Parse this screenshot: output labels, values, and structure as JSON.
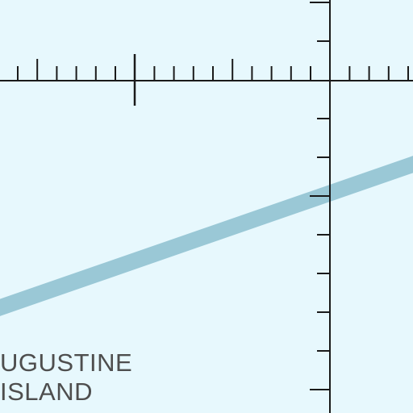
{
  "map": {
    "background_color": "#e7f8fd",
    "water_route_color": "#9ac8d6",
    "graticule_color": "#1a1a1a",
    "label_color": "#4e4e4e",
    "labels": {
      "island_name_line1": "UGUSTINE",
      "island_name_line2": "ISLAND"
    }
  }
}
